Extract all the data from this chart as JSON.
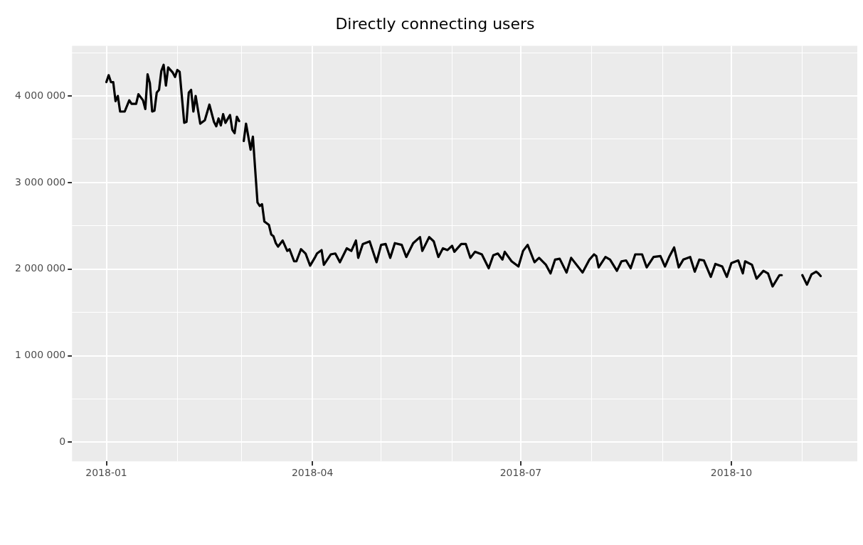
{
  "chart_data": {
    "type": "line",
    "title": "Directly connecting users",
    "xlim": [
      "2017-12-17",
      "2018-11-25"
    ],
    "xticks": [
      "2018-01",
      {
        "value": "2018-02",
        "label": null
      },
      {
        "value": "2018-03",
        "label": null
      },
      "2018-04",
      {
        "value": "2018-05",
        "label": null
      },
      {
        "value": "2018-06",
        "label": null
      },
      "2018-07",
      {
        "value": "2018-08",
        "label": null
      },
      {
        "value": "2018-09",
        "label": null
      },
      "2018-10",
      {
        "value": "2018-11",
        "label": null
      }
    ],
    "ylim": [
      -220000,
      4580000
    ],
    "yticks": [
      {
        "value": 0,
        "label": "0"
      },
      {
        "value": 500000,
        "label": null
      },
      {
        "value": 1000000,
        "label": "1 000 000"
      },
      {
        "value": 1500000,
        "label": null
      },
      {
        "value": 2000000,
        "label": "2 000 000"
      },
      {
        "value": 2500000,
        "label": null
      },
      {
        "value": 3000000,
        "label": "3 000 000"
      },
      {
        "value": 3500000,
        "label": null
      },
      {
        "value": 4000000,
        "label": "4 000 000"
      },
      {
        "value": 4500000,
        "label": null
      }
    ],
    "grid": true,
    "legend": false,
    "marker": "none",
    "line_style": "solid",
    "series": [
      {
        "color": "#000000",
        "x": [
          "2018-01-01",
          "2018-01-02",
          "2018-01-03",
          "2018-01-04",
          "2018-01-05",
          "2018-01-06",
          "2018-01-07",
          "2018-01-09",
          "2018-01-11",
          "2018-01-12",
          "2018-01-14",
          "2018-01-15",
          "2018-01-17",
          "2018-01-18",
          "2018-01-19",
          "2018-01-20",
          "2018-01-21",
          "2018-01-22",
          "2018-01-23",
          "2018-01-24",
          "2018-01-25",
          "2018-01-26",
          "2018-01-27",
          "2018-01-28",
          "2018-01-30",
          "2018-01-31",
          "2018-02-01",
          "2018-02-02",
          "2018-02-04",
          "2018-02-05",
          "2018-02-06",
          "2018-02-07",
          "2018-02-08",
          "2018-02-09",
          "2018-02-11",
          "2018-02-13",
          "2018-02-15",
          "2018-02-17",
          "2018-02-18",
          "2018-02-19",
          "2018-02-20",
          "2018-02-21",
          "2018-02-22",
          "2018-02-24",
          "2018-02-25",
          "2018-02-26",
          "2018-02-27",
          "2018-02-28",
          "2018-03-01",
          "2018-03-02",
          "2018-03-03",
          "2018-03-05",
          "2018-03-06",
          "2018-03-08",
          "2018-03-09",
          "2018-03-10",
          "2018-03-11",
          "2018-03-13",
          "2018-03-14",
          "2018-03-15",
          "2018-03-16",
          "2018-03-17",
          "2018-03-19",
          "2018-03-21",
          "2018-03-22",
          "2018-03-24",
          "2018-03-25",
          "2018-03-27",
          "2018-03-29",
          "2018-03-31",
          "2018-04-02",
          "2018-04-03",
          "2018-04-05",
          "2018-04-06",
          "2018-04-09",
          "2018-04-11",
          "2018-04-13",
          "2018-04-16",
          "2018-04-18",
          "2018-04-20",
          "2018-04-21",
          "2018-04-23",
          "2018-04-26",
          "2018-04-29",
          "2018-05-01",
          "2018-05-03",
          "2018-05-05",
          "2018-05-07",
          "2018-05-10",
          "2018-05-12",
          "2018-05-15",
          "2018-05-18",
          "2018-05-19",
          "2018-05-22",
          "2018-05-24",
          "2018-05-26",
          "2018-05-28",
          "2018-05-30",
          "2018-06-01",
          "2018-06-02",
          "2018-06-05",
          "2018-06-07",
          "2018-06-09",
          "2018-06-11",
          "2018-06-14",
          "2018-06-17",
          "2018-06-19",
          "2018-06-21",
          "2018-06-23",
          "2018-06-24",
          "2018-06-27",
          "2018-06-30",
          "2018-07-02",
          "2018-07-04",
          "2018-07-07",
          "2018-07-09",
          "2018-07-12",
          "2018-07-14",
          "2018-07-16",
          "2018-07-18",
          "2018-07-21",
          "2018-07-23",
          "2018-07-28",
          "2018-07-31",
          "2018-08-02",
          "2018-08-03",
          "2018-08-04",
          "2018-08-07",
          "2018-08-09",
          "2018-08-12",
          "2018-08-14",
          "2018-08-16",
          "2018-08-18",
          "2018-08-20",
          "2018-08-23",
          "2018-08-25",
          "2018-08-28",
          "2018-08-31",
          "2018-09-02",
          "2018-09-04",
          "2018-09-06",
          "2018-09-08",
          "2018-09-10",
          "2018-09-13",
          "2018-09-15",
          "2018-09-17",
          "2018-09-19",
          "2018-09-22",
          "2018-09-24",
          "2018-09-27",
          "2018-09-29",
          "2018-10-01",
          "2018-10-04",
          "2018-10-06",
          "2018-10-07",
          "2018-10-10",
          "2018-10-12",
          "2018-10-15",
          "2018-10-17",
          "2018-10-19",
          "2018-10-22",
          "2018-10-23",
          "2018-10-27",
          "2018-11-01",
          "2018-11-03",
          "2018-11-05",
          "2018-11-07",
          "2018-11-08",
          "2018-11-09"
        ],
        "values": [
          4160000,
          4240000,
          4160000,
          4160000,
          3940000,
          4000000,
          3820000,
          3820000,
          3950000,
          3910000,
          3910000,
          4020000,
          3950000,
          3850000,
          4250000,
          4150000,
          3820000,
          3830000,
          4040000,
          4070000,
          4290000,
          4360000,
          4120000,
          4330000,
          4270000,
          4220000,
          4300000,
          4280000,
          3690000,
          3700000,
          4040000,
          4070000,
          3820000,
          4000000,
          3680000,
          3720000,
          3900000,
          3700000,
          3650000,
          3740000,
          3660000,
          3790000,
          3690000,
          3780000,
          3610000,
          3570000,
          3760000,
          3710000,
          null,
          3480000,
          3680000,
          3380000,
          3530000,
          2770000,
          2730000,
          2750000,
          2550000,
          2510000,
          2400000,
          2380000,
          2300000,
          2260000,
          2330000,
          2210000,
          2230000,
          2090000,
          2090000,
          2230000,
          2180000,
          2040000,
          2130000,
          2180000,
          2220000,
          2050000,
          2170000,
          2180000,
          2080000,
          2240000,
          2210000,
          2330000,
          2130000,
          2290000,
          2320000,
          2080000,
          2280000,
          2290000,
          2130000,
          2300000,
          2280000,
          2140000,
          2300000,
          2370000,
          2210000,
          2370000,
          2320000,
          2140000,
          2240000,
          2220000,
          2270000,
          2200000,
          2290000,
          2290000,
          2130000,
          2200000,
          2170000,
          2010000,
          2160000,
          2180000,
          2110000,
          2200000,
          2090000,
          2030000,
          2210000,
          2280000,
          2080000,
          2130000,
          2050000,
          1950000,
          2110000,
          2120000,
          1960000,
          2130000,
          1960000,
          2110000,
          2170000,
          2150000,
          2020000,
          2140000,
          2110000,
          1980000,
          2090000,
          2100000,
          2010000,
          2170000,
          2170000,
          2020000,
          2140000,
          2150000,
          2030000,
          2150000,
          2250000,
          2020000,
          2110000,
          2140000,
          1970000,
          2110000,
          2100000,
          1910000,
          2060000,
          2030000,
          1910000,
          2070000,
          2100000,
          1950000,
          2090000,
          2050000,
          1890000,
          1980000,
          1950000,
          1800000,
          1930000,
          1930000,
          null,
          1930000,
          1820000,
          1940000,
          1970000,
          1950000,
          1920000
        ]
      }
    ]
  }
}
